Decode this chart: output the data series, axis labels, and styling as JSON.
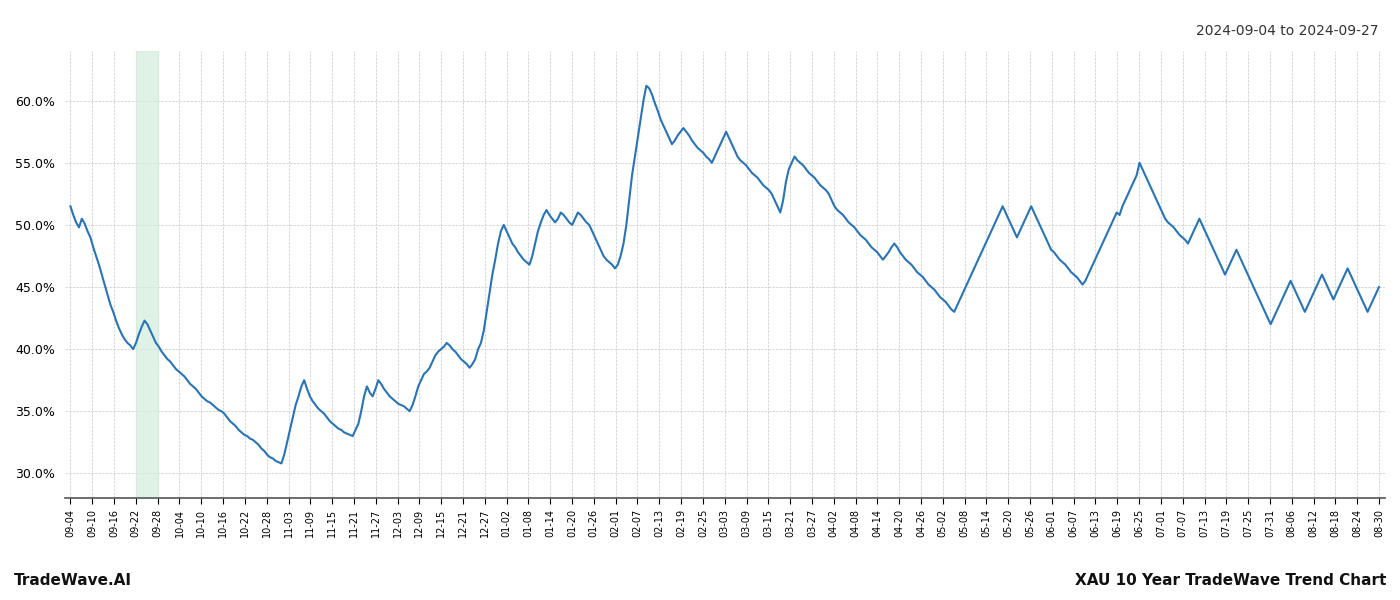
{
  "title_date_range": "2024-09-04 to 2024-09-27",
  "footer_left": "TradeWave.AI",
  "footer_right": "XAU 10 Year TradeWave Trend Chart",
  "line_color": "#2874b8",
  "line_width": 1.5,
  "bg_color": "#ffffff",
  "grid_color": "#c8c8c8",
  "grid_style": "--",
  "highlight_color": "#d4edda",
  "highlight_alpha": 0.7,
  "ylim": [
    28.0,
    64.0
  ],
  "yticks": [
    30.0,
    35.0,
    40.0,
    45.0,
    50.0,
    55.0,
    60.0
  ],
  "x_labels": [
    "09-04",
    "09-10",
    "09-16",
    "09-22",
    "09-28",
    "10-04",
    "10-10",
    "10-16",
    "10-22",
    "10-28",
    "11-03",
    "11-09",
    "11-15",
    "11-21",
    "11-27",
    "12-03",
    "12-09",
    "12-15",
    "12-21",
    "12-27",
    "01-02",
    "01-08",
    "01-14",
    "01-20",
    "01-26",
    "02-01",
    "02-07",
    "02-13",
    "02-19",
    "02-25",
    "03-03",
    "03-09",
    "03-15",
    "03-21",
    "03-27",
    "04-02",
    "04-08",
    "04-14",
    "04-20",
    "04-26",
    "05-02",
    "05-08",
    "05-14",
    "05-20",
    "05-26",
    "06-01",
    "06-07",
    "06-13",
    "06-19",
    "06-25",
    "07-01",
    "07-07",
    "07-13",
    "07-19",
    "07-25",
    "07-31",
    "08-06",
    "08-12",
    "08-18",
    "08-24",
    "08-30"
  ],
  "highlight_x_start_label": "09-22",
  "highlight_x_end_label": "09-28",
  "values": [
    51.5,
    50.8,
    50.2,
    49.8,
    50.5,
    50.1,
    49.5,
    49.0,
    48.2,
    47.5,
    46.8,
    46.0,
    45.2,
    44.4,
    43.6,
    43.0,
    42.3,
    41.7,
    41.2,
    40.8,
    40.5,
    40.3,
    40.0,
    40.5,
    41.2,
    41.8,
    42.3,
    42.0,
    41.5,
    41.0,
    40.5,
    40.2,
    39.8,
    39.5,
    39.2,
    39.0,
    38.7,
    38.4,
    38.2,
    38.0,
    37.8,
    37.5,
    37.2,
    37.0,
    36.8,
    36.5,
    36.2,
    36.0,
    35.8,
    35.7,
    35.5,
    35.3,
    35.1,
    35.0,
    34.8,
    34.5,
    34.2,
    34.0,
    33.8,
    33.5,
    33.3,
    33.1,
    33.0,
    32.8,
    32.7,
    32.5,
    32.3,
    32.0,
    31.8,
    31.5,
    31.3,
    31.2,
    31.0,
    30.9,
    30.8,
    31.5,
    32.5,
    33.5,
    34.5,
    35.5,
    36.2,
    37.0,
    37.5,
    36.8,
    36.2,
    35.8,
    35.5,
    35.2,
    35.0,
    34.8,
    34.5,
    34.2,
    34.0,
    33.8,
    33.6,
    33.5,
    33.3,
    33.2,
    33.1,
    33.0,
    33.5,
    34.0,
    35.0,
    36.2,
    37.0,
    36.5,
    36.2,
    36.8,
    37.5,
    37.2,
    36.8,
    36.5,
    36.2,
    36.0,
    35.8,
    35.6,
    35.5,
    35.4,
    35.2,
    35.0,
    35.5,
    36.2,
    37.0,
    37.5,
    38.0,
    38.2,
    38.5,
    39.0,
    39.5,
    39.8,
    40.0,
    40.2,
    40.5,
    40.3,
    40.0,
    39.8,
    39.5,
    39.2,
    39.0,
    38.8,
    38.5,
    38.8,
    39.2,
    40.0,
    40.5,
    41.5,
    43.0,
    44.5,
    46.0,
    47.2,
    48.5,
    49.5,
    50.0,
    49.5,
    49.0,
    48.5,
    48.2,
    47.8,
    47.5,
    47.2,
    47.0,
    46.8,
    47.5,
    48.5,
    49.5,
    50.2,
    50.8,
    51.2,
    50.8,
    50.5,
    50.2,
    50.5,
    51.0,
    50.8,
    50.5,
    50.2,
    50.0,
    50.5,
    51.0,
    50.8,
    50.5,
    50.2,
    50.0,
    49.5,
    49.0,
    48.5,
    48.0,
    47.5,
    47.2,
    47.0,
    46.8,
    46.5,
    46.8,
    47.5,
    48.5,
    50.0,
    52.0,
    54.0,
    55.5,
    57.0,
    58.5,
    60.0,
    61.2,
    61.0,
    60.5,
    59.8,
    59.2,
    58.5,
    58.0,
    57.5,
    57.0,
    56.5,
    56.8,
    57.2,
    57.5,
    57.8,
    57.5,
    57.2,
    56.8,
    56.5,
    56.2,
    56.0,
    55.8,
    55.5,
    55.3,
    55.0,
    55.5,
    56.0,
    56.5,
    57.0,
    57.5,
    57.0,
    56.5,
    56.0,
    55.5,
    55.2,
    55.0,
    54.8,
    54.5,
    54.2,
    54.0,
    53.8,
    53.5,
    53.2,
    53.0,
    52.8,
    52.5,
    52.0,
    51.5,
    51.0,
    52.0,
    53.5,
    54.5,
    55.0,
    55.5,
    55.2,
    55.0,
    54.8,
    54.5,
    54.2,
    54.0,
    53.8,
    53.5,
    53.2,
    53.0,
    52.8,
    52.5,
    52.0,
    51.5,
    51.2,
    51.0,
    50.8,
    50.5,
    50.2,
    50.0,
    49.8,
    49.5,
    49.2,
    49.0,
    48.8,
    48.5,
    48.2,
    48.0,
    47.8,
    47.5,
    47.2,
    47.5,
    47.8,
    48.2,
    48.5,
    48.2,
    47.8,
    47.5,
    47.2,
    47.0,
    46.8,
    46.5,
    46.2,
    46.0,
    45.8,
    45.5,
    45.2,
    45.0,
    44.8,
    44.5,
    44.2,
    44.0,
    43.8,
    43.5,
    43.2,
    43.0,
    43.5,
    44.0,
    44.5,
    45.0,
    45.5,
    46.0,
    46.5,
    47.0,
    47.5,
    48.0,
    48.5,
    49.0,
    49.5,
    50.0,
    50.5,
    51.0,
    51.5,
    51.0,
    50.5,
    50.0,
    49.5,
    49.0,
    49.5,
    50.0,
    50.5,
    51.0,
    51.5,
    51.0,
    50.5,
    50.0,
    49.5,
    49.0,
    48.5,
    48.0,
    47.8,
    47.5,
    47.2,
    47.0,
    46.8,
    46.5,
    46.2,
    46.0,
    45.8,
    45.5,
    45.2,
    45.5,
    46.0,
    46.5,
    47.0,
    47.5,
    48.0,
    48.5,
    49.0,
    49.5,
    50.0,
    50.5,
    51.0,
    50.8,
    51.5,
    52.0,
    52.5,
    53.0,
    53.5,
    54.0,
    55.0,
    54.5,
    54.0,
    53.5,
    53.0,
    52.5,
    52.0,
    51.5,
    51.0,
    50.5,
    50.2,
    50.0,
    49.8,
    49.5,
    49.2,
    49.0,
    48.8,
    48.5,
    49.0,
    49.5,
    50.0,
    50.5,
    50.0,
    49.5,
    49.0,
    48.5,
    48.0,
    47.5,
    47.0,
    46.5,
    46.0,
    46.5,
    47.0,
    47.5,
    48.0,
    47.5,
    47.0,
    46.5,
    46.0,
    45.5,
    45.0,
    44.5,
    44.0,
    43.5,
    43.0,
    42.5,
    42.0,
    42.5,
    43.0,
    43.5,
    44.0,
    44.5,
    45.0,
    45.5,
    45.0,
    44.5,
    44.0,
    43.5,
    43.0,
    43.5,
    44.0,
    44.5,
    45.0,
    45.5,
    46.0,
    45.5,
    45.0,
    44.5,
    44.0,
    44.5,
    45.0,
    45.5,
    46.0,
    46.5,
    46.0,
    45.5,
    45.0,
    44.5,
    44.0,
    43.5,
    43.0,
    43.5,
    44.0,
    44.5,
    45.0
  ]
}
